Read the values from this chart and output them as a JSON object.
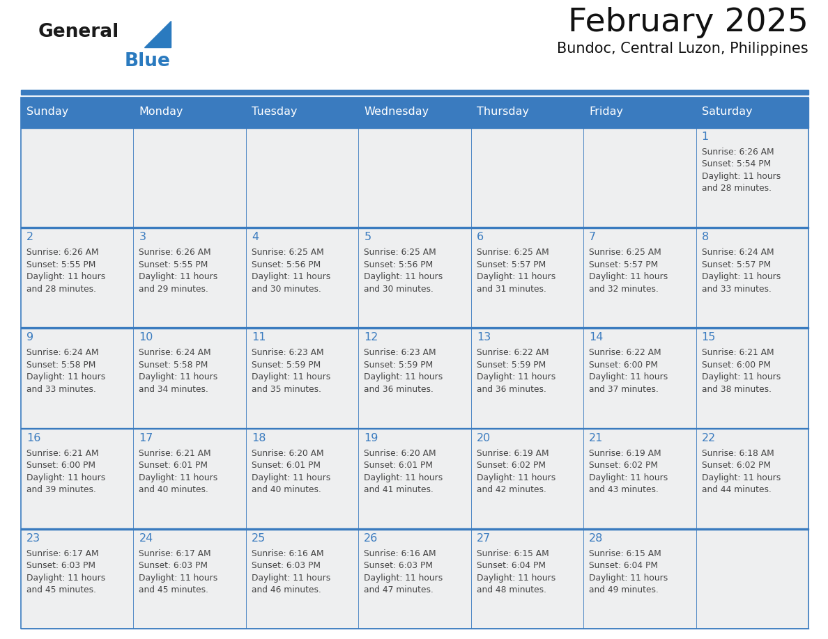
{
  "title": "February 2025",
  "subtitle": "Bundoc, Central Luzon, Philippines",
  "header_color": "#3a7bbf",
  "header_text_color": "#ffffff",
  "grid_line_color": "#3a7bbf",
  "day_names": [
    "Sunday",
    "Monday",
    "Tuesday",
    "Wednesday",
    "Thursday",
    "Friday",
    "Saturday"
  ],
  "background_color": "#ffffff",
  "cell_bg": "#eeeff0",
  "day_number_color": "#3a7bbf",
  "text_color": "#444444",
  "logo_general_color": "#1a1a1a",
  "logo_blue_color": "#2a7abf",
  "calendar": [
    [
      null,
      null,
      null,
      null,
      null,
      null,
      1
    ],
    [
      2,
      3,
      4,
      5,
      6,
      7,
      8
    ],
    [
      9,
      10,
      11,
      12,
      13,
      14,
      15
    ],
    [
      16,
      17,
      18,
      19,
      20,
      21,
      22
    ],
    [
      23,
      24,
      25,
      26,
      27,
      28,
      null
    ]
  ],
  "cell_data": {
    "1": {
      "sunrise": "6:26 AM",
      "sunset": "5:54 PM",
      "daylight_hours": 11,
      "daylight_minutes": 28
    },
    "2": {
      "sunrise": "6:26 AM",
      "sunset": "5:55 PM",
      "daylight_hours": 11,
      "daylight_minutes": 28
    },
    "3": {
      "sunrise": "6:26 AM",
      "sunset": "5:55 PM",
      "daylight_hours": 11,
      "daylight_minutes": 29
    },
    "4": {
      "sunrise": "6:25 AM",
      "sunset": "5:56 PM",
      "daylight_hours": 11,
      "daylight_minutes": 30
    },
    "5": {
      "sunrise": "6:25 AM",
      "sunset": "5:56 PM",
      "daylight_hours": 11,
      "daylight_minutes": 30
    },
    "6": {
      "sunrise": "6:25 AM",
      "sunset": "5:57 PM",
      "daylight_hours": 11,
      "daylight_minutes": 31
    },
    "7": {
      "sunrise": "6:25 AM",
      "sunset": "5:57 PM",
      "daylight_hours": 11,
      "daylight_minutes": 32
    },
    "8": {
      "sunrise": "6:24 AM",
      "sunset": "5:57 PM",
      "daylight_hours": 11,
      "daylight_minutes": 33
    },
    "9": {
      "sunrise": "6:24 AM",
      "sunset": "5:58 PM",
      "daylight_hours": 11,
      "daylight_minutes": 33
    },
    "10": {
      "sunrise": "6:24 AM",
      "sunset": "5:58 PM",
      "daylight_hours": 11,
      "daylight_minutes": 34
    },
    "11": {
      "sunrise": "6:23 AM",
      "sunset": "5:59 PM",
      "daylight_hours": 11,
      "daylight_minutes": 35
    },
    "12": {
      "sunrise": "6:23 AM",
      "sunset": "5:59 PM",
      "daylight_hours": 11,
      "daylight_minutes": 36
    },
    "13": {
      "sunrise": "6:22 AM",
      "sunset": "5:59 PM",
      "daylight_hours": 11,
      "daylight_minutes": 36
    },
    "14": {
      "sunrise": "6:22 AM",
      "sunset": "6:00 PM",
      "daylight_hours": 11,
      "daylight_minutes": 37
    },
    "15": {
      "sunrise": "6:21 AM",
      "sunset": "6:00 PM",
      "daylight_hours": 11,
      "daylight_minutes": 38
    },
    "16": {
      "sunrise": "6:21 AM",
      "sunset": "6:00 PM",
      "daylight_hours": 11,
      "daylight_minutes": 39
    },
    "17": {
      "sunrise": "6:21 AM",
      "sunset": "6:01 PM",
      "daylight_hours": 11,
      "daylight_minutes": 40
    },
    "18": {
      "sunrise": "6:20 AM",
      "sunset": "6:01 PM",
      "daylight_hours": 11,
      "daylight_minutes": 40
    },
    "19": {
      "sunrise": "6:20 AM",
      "sunset": "6:01 PM",
      "daylight_hours": 11,
      "daylight_minutes": 41
    },
    "20": {
      "sunrise": "6:19 AM",
      "sunset": "6:02 PM",
      "daylight_hours": 11,
      "daylight_minutes": 42
    },
    "21": {
      "sunrise": "6:19 AM",
      "sunset": "6:02 PM",
      "daylight_hours": 11,
      "daylight_minutes": 43
    },
    "22": {
      "sunrise": "6:18 AM",
      "sunset": "6:02 PM",
      "daylight_hours": 11,
      "daylight_minutes": 44
    },
    "23": {
      "sunrise": "6:17 AM",
      "sunset": "6:03 PM",
      "daylight_hours": 11,
      "daylight_minutes": 45
    },
    "24": {
      "sunrise": "6:17 AM",
      "sunset": "6:03 PM",
      "daylight_hours": 11,
      "daylight_minutes": 45
    },
    "25": {
      "sunrise": "6:16 AM",
      "sunset": "6:03 PM",
      "daylight_hours": 11,
      "daylight_minutes": 46
    },
    "26": {
      "sunrise": "6:16 AM",
      "sunset": "6:03 PM",
      "daylight_hours": 11,
      "daylight_minutes": 47
    },
    "27": {
      "sunrise": "6:15 AM",
      "sunset": "6:04 PM",
      "daylight_hours": 11,
      "daylight_minutes": 48
    },
    "28": {
      "sunrise": "6:15 AM",
      "sunset": "6:04 PM",
      "daylight_hours": 11,
      "daylight_minutes": 49
    }
  }
}
